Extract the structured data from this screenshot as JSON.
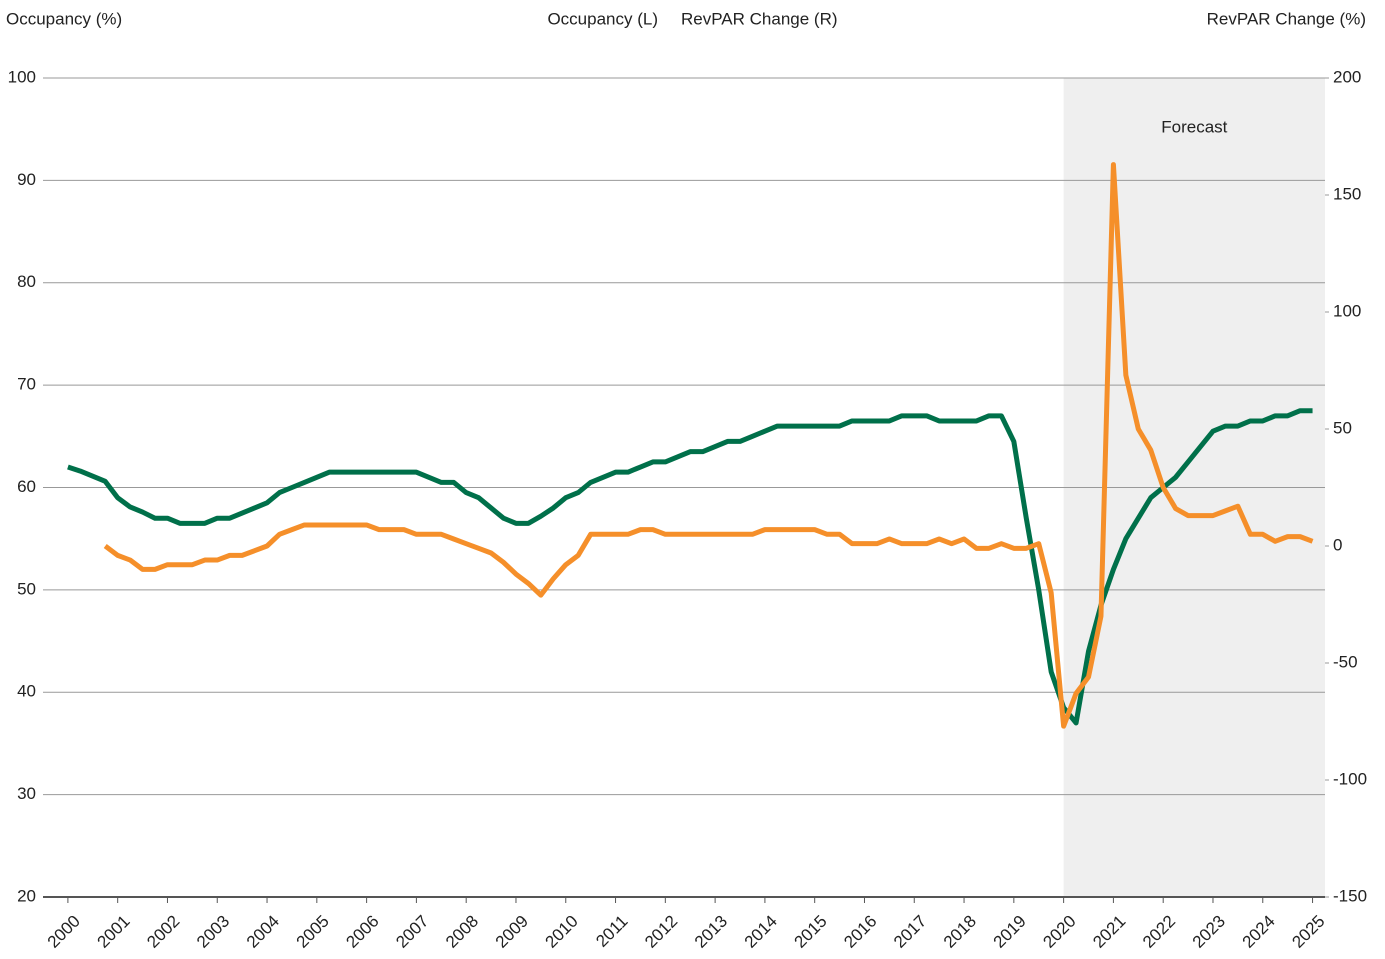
{
  "chart_data": {
    "type": "line",
    "y_label": "Occupancy (%)",
    "y2_label": "RevPAR Change (%)",
    "shade": {
      "from": 2020,
      "label": "Forecast",
      "color": "#efefef"
    },
    "x": [
      2000,
      2000.25,
      2000.5,
      2000.75,
      2001,
      2001.25,
      2001.5,
      2001.75,
      2002,
      2002.25,
      2002.5,
      2002.75,
      2003,
      2003.25,
      2003.5,
      2003.75,
      2004,
      2004.25,
      2004.5,
      2004.75,
      2005,
      2005.25,
      2005.5,
      2005.75,
      2006,
      2006.25,
      2006.5,
      2006.75,
      2007,
      2007.25,
      2007.5,
      2007.75,
      2008,
      2008.25,
      2008.5,
      2008.75,
      2009,
      2009.25,
      2009.5,
      2009.75,
      2010,
      2010.25,
      2010.5,
      2010.75,
      2011,
      2011.25,
      2011.5,
      2011.75,
      2012,
      2012.25,
      2012.5,
      2012.75,
      2013,
      2013.25,
      2013.5,
      2013.75,
      2014,
      2014.25,
      2014.5,
      2014.75,
      2015,
      2015.25,
      2015.5,
      2015.75,
      2016,
      2016.25,
      2016.5,
      2016.75,
      2017,
      2017.25,
      2017.5,
      2017.75,
      2018,
      2018.25,
      2018.5,
      2018.75,
      2019,
      2019.25,
      2019.5,
      2019.75,
      2020,
      2020.25,
      2020.5,
      2020.75,
      2021,
      2021.25,
      2021.5,
      2021.75,
      2022,
      2022.25,
      2022.5,
      2022.75,
      2023,
      2023.25,
      2023.5,
      2023.75,
      2024,
      2024.25,
      2024.5,
      2024.75,
      2025
    ],
    "series": [
      {
        "name": "Occupancy (L)",
        "color": "#00704a",
        "axis": "y",
        "values": [
          62,
          61.6,
          61.1,
          60.6,
          59,
          58.1,
          57.6,
          57,
          57,
          56.5,
          56.5,
          56.5,
          57,
          57,
          57.5,
          58,
          58.5,
          59.5,
          60,
          60.5,
          61,
          61.5,
          61.5,
          61.5,
          61.5,
          61.5,
          61.5,
          61.5,
          61.5,
          61,
          60.5,
          60.5,
          59.5,
          59,
          58,
          57,
          56.5,
          56.5,
          57.2,
          58,
          59,
          59.5,
          60.5,
          61,
          61.5,
          61.5,
          62,
          62.5,
          62.5,
          63,
          63.5,
          63.5,
          64,
          64.5,
          64.5,
          65,
          65.5,
          66,
          66,
          66,
          66,
          66,
          66,
          66.5,
          66.5,
          66.5,
          66.5,
          67,
          67,
          67,
          66.5,
          66.5,
          66.5,
          66.5,
          67,
          67,
          64.5,
          57,
          50,
          42,
          38.5,
          37,
          44,
          48.5,
          52,
          55,
          57,
          59,
          60,
          61,
          62.5,
          64,
          65.5,
          66,
          66,
          66.5,
          66.5,
          67,
          67,
          67.5,
          67.5
        ]
      },
      {
        "name": "RevPAR Change (R)",
        "color": "#f58f2a",
        "axis": "y2",
        "values": [
          null,
          null,
          null,
          0,
          -4,
          -6,
          -10,
          -10,
          -8,
          -8,
          -8,
          -6,
          -6,
          -4,
          -4,
          -2,
          0,
          5,
          7,
          9,
          9,
          9,
          9,
          9,
          9,
          7,
          7,
          7,
          5,
          5,
          5,
          3,
          1,
          -1,
          -3,
          -7,
          -12,
          -16,
          -21,
          -14,
          -8,
          -4,
          5,
          5,
          5,
          5,
          7,
          7,
          5,
          5,
          5,
          5,
          5,
          5,
          5,
          5,
          7,
          7,
          7,
          7,
          7,
          5,
          5,
          1,
          1,
          1,
          3,
          1,
          1,
          1,
          3,
          1,
          3,
          -1,
          -1,
          1,
          -1,
          -1,
          1,
          -20,
          -77,
          -63,
          -56,
          -30,
          163,
          73,
          50,
          41,
          25,
          16,
          13,
          13,
          13,
          15,
          17,
          5,
          5,
          2,
          4,
          4,
          2
        ]
      }
    ],
    "xlim": [
      1999.5,
      2025.25
    ],
    "xticks": [
      2000,
      2001,
      2002,
      2003,
      2004,
      2005,
      2006,
      2007,
      2008,
      2009,
      2010,
      2011,
      2012,
      2013,
      2014,
      2015,
      2016,
      2017,
      2018,
      2019,
      2020,
      2021,
      2022,
      2023,
      2024,
      2025
    ],
    "ylim": [
      20,
      100
    ],
    "yticks": [
      20,
      30,
      40,
      50,
      60,
      70,
      80,
      90,
      100
    ],
    "y2lim": [
      -150,
      200
    ],
    "y2ticks": [
      -150,
      -100,
      -50,
      0,
      50,
      100,
      150,
      200
    ],
    "grid": true
  }
}
